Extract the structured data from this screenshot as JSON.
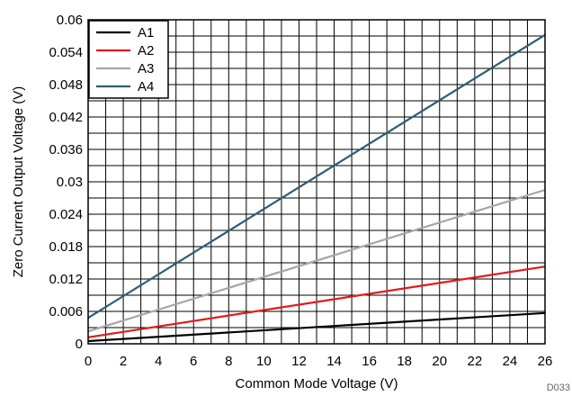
{
  "chart_data": {
    "type": "line",
    "title": "",
    "xlabel": "Common Mode Voltage (V)",
    "ylabel": "Zero Current Output Voltage (V)",
    "xlim": [
      0,
      26
    ],
    "ylim": [
      0,
      0.06
    ],
    "xticks": [
      "0",
      "2",
      "4",
      "6",
      "8",
      "10",
      "12",
      "14",
      "16",
      "18",
      "20",
      "22",
      "24",
      "26"
    ],
    "yticks": [
      "0",
      "0.006",
      "0.012",
      "0.018",
      "0.024",
      "0.03",
      "0.036",
      "0.042",
      "0.048",
      "0.054",
      "0.06"
    ],
    "grid": true,
    "minor_grid": true,
    "legend_position": "top-left",
    "series": [
      {
        "name": "A1",
        "color": "#000000",
        "x": [
          0,
          26
        ],
        "y": [
          0.0005,
          0.0057
        ]
      },
      {
        "name": "A2",
        "color": "#e31a1c",
        "x": [
          0,
          26
        ],
        "y": [
          0.0012,
          0.0143
        ]
      },
      {
        "name": "A3",
        "color": "#a6a6a6",
        "x": [
          0,
          26
        ],
        "y": [
          0.0023,
          0.0285
        ]
      },
      {
        "name": "A4",
        "color": "#2e5d73",
        "x": [
          0,
          26
        ],
        "y": [
          0.0048,
          0.0572
        ]
      }
    ]
  },
  "figure_id": "D033"
}
